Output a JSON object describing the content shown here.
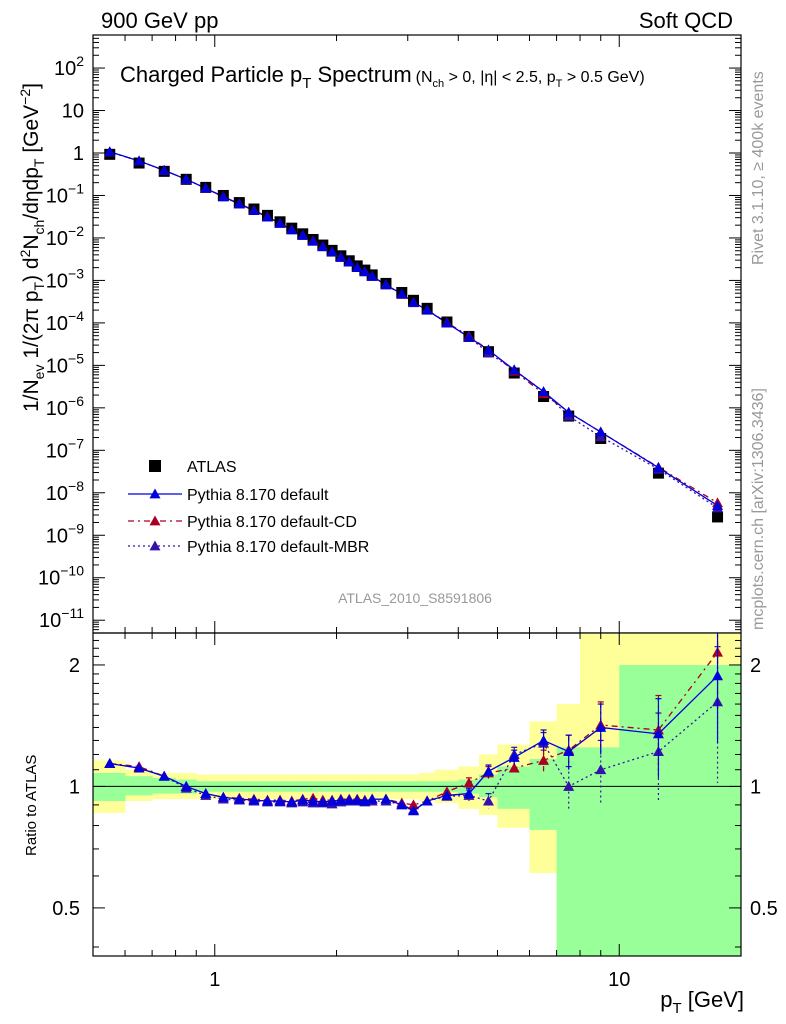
{
  "header": {
    "left": "900 GeV pp",
    "right": "Soft QCD"
  },
  "side": {
    "top": "Rivet 3.1.10, ≥ 400k events",
    "bottom": "mcplots.cern.ch [arXiv:1306.3436]"
  },
  "main_panel": {
    "title": "Charged Particle p",
    "title_sub": "T",
    "title2": " Spectrum",
    "cuts": "(N",
    "cuts_sub": "ch",
    "cuts2": " > 0, |η| < 2.5, p",
    "cuts_sub2": "T",
    "cuts3": " > 0.5 GeV)",
    "ylabel_parts": [
      "1/N",
      "ev",
      "  1/(2π p",
      "T",
      ")  d",
      "2",
      "N",
      "ch",
      "/dηdp",
      "T",
      " [GeV",
      "−2",
      "]"
    ],
    "analysis": "ATLAS_2010_S8591806"
  },
  "ratio_panel": {
    "ylabel": "Ratio to ATLAS"
  },
  "xlabel": "p",
  "xlabel_sub": "T",
  "xlabel_unit": " [GeV]",
  "colors": {
    "data": "#000000",
    "default": "#0000dd",
    "cd": "#aa0022",
    "mbr": "#3311aa",
    "band_inner": "#99ff99",
    "band_outer": "#ffff99"
  },
  "chart_data": [
    {
      "type": "scatter",
      "title": "Charged Particle pT Spectrum (Nch > 0, |η| < 2.5, pT > 0.5 GeV)",
      "xscale": "log",
      "yscale": "log",
      "xlim": [
        0.5,
        20
      ],
      "ylim": [
        5e-12,
        600
      ],
      "x_ticks": [
        "1",
        "10"
      ],
      "y_ticks": [
        "10^-11",
        "10^-10",
        "10^-9",
        "10^-8",
        "10^-7",
        "10^-6",
        "10^-5",
        "10^-4",
        "10^-3",
        "10^-2",
        "10^-1",
        "1",
        "10",
        "10^2"
      ],
      "legend_position": "bottom-left",
      "x": [
        0.55,
        0.65,
        0.75,
        0.85,
        0.95,
        1.05,
        1.15,
        1.25,
        1.35,
        1.45,
        1.55,
        1.65,
        1.75,
        1.85,
        1.95,
        2.05,
        2.15,
        2.25,
        2.35,
        2.45,
        2.65,
        2.9,
        3.1,
        3.35,
        3.75,
        4.25,
        4.75,
        5.5,
        6.5,
        7.5,
        9.0,
        12.5,
        17.5
      ],
      "series": [
        {
          "name": "ATLAS",
          "marker": "square",
          "values": [
            0.93,
            0.58,
            0.37,
            0.24,
            0.155,
            0.1,
            0.068,
            0.048,
            0.034,
            0.024,
            0.017,
            0.0125,
            0.0092,
            0.0068,
            0.0051,
            0.0038,
            0.0029,
            0.0022,
            0.00175,
            0.00135,
            0.00085,
            0.00052,
            0.00034,
            0.00022,
            0.000105,
            4.8e-05,
            2.1e-05,
            6.6e-06,
            1.85e-06,
            6.4e-07,
            1.9e-07,
            2.9e-08,
            2.7e-09
          ]
        },
        {
          "name": "Pythia 8.170 default",
          "marker": "triangle",
          "values": [
            1.07,
            0.65,
            0.39,
            0.24,
            0.148,
            0.093,
            0.063,
            0.044,
            0.031,
            0.022,
            0.0155,
            0.0115,
            0.0084,
            0.0062,
            0.0047,
            0.0035,
            0.0027,
            0.002,
            0.0016,
            0.00125,
            0.00079,
            0.00048,
            0.000305,
            0.0002,
            9.9e-05,
            4.6e-05,
            2.3e-05,
            7.8e-06,
            2.4e-06,
            7.8e-07,
            2.7e-07,
            3.9e-08,
            5e-09
          ]
        },
        {
          "name": "Pythia 8.170 default-CD",
          "marker": "triangle",
          "values": [
            1.06,
            0.65,
            0.39,
            0.24,
            0.149,
            0.094,
            0.064,
            0.045,
            0.0315,
            0.0222,
            0.0157,
            0.0116,
            0.0086,
            0.0063,
            0.0047,
            0.0035,
            0.0027,
            0.002,
            0.0016,
            0.00125,
            0.00079,
            0.00047,
            0.000305,
            0.000201,
            0.000102,
            4.9e-05,
            2.3e-05,
            7.3e-06,
            2.15e-06,
            7.9e-07,
            2.7e-07,
            4e-08,
            5.8e-09
          ]
        },
        {
          "name": "Pythia 8.170 default-MBR",
          "marker": "triangle",
          "values": [
            1.06,
            0.65,
            0.39,
            0.24,
            0.147,
            0.093,
            0.063,
            0.044,
            0.031,
            0.022,
            0.0155,
            0.0114,
            0.0084,
            0.0062,
            0.0046,
            0.0035,
            0.0027,
            0.002,
            0.0016,
            0.00124,
            0.00078,
            0.00047,
            0.000298,
            0.000199,
            9.9e-05,
            4.6e-05,
            1.95e-05,
            7.9e-06,
            2.4e-06,
            6.4e-07,
            2.1e-07,
            3.6e-08,
            4.4e-09
          ]
        }
      ]
    },
    {
      "type": "line",
      "title": "",
      "ylabel": "Ratio to ATLAS",
      "xscale": "log",
      "yscale": "log",
      "xlim": [
        0.5,
        20
      ],
      "ylim": [
        0.38,
        2.4
      ],
      "y_ticks": [
        "0.5",
        "1",
        "2"
      ],
      "x": [
        0.55,
        0.65,
        0.75,
        0.85,
        0.95,
        1.05,
        1.15,
        1.25,
        1.35,
        1.45,
        1.55,
        1.65,
        1.75,
        1.85,
        1.95,
        2.05,
        2.15,
        2.25,
        2.35,
        2.45,
        2.65,
        2.9,
        3.1,
        3.35,
        3.75,
        4.25,
        4.75,
        5.5,
        6.5,
        7.5,
        9.0,
        12.5,
        17.5
      ],
      "x_edges": [
        0.5,
        0.6,
        0.7,
        0.8,
        0.9,
        1.0,
        1.1,
        1.2,
        1.3,
        1.4,
        1.5,
        1.6,
        1.7,
        1.8,
        1.9,
        2.0,
        2.1,
        2.2,
        2.3,
        2.4,
        2.5,
        2.8,
        3.0,
        3.2,
        3.5,
        4.0,
        4.5,
        5.0,
        6.0,
        7.0,
        8.0,
        10.0,
        15.0,
        20.0
      ],
      "band_inner": [
        [
          0.92,
          1.08
        ],
        [
          0.95,
          1.06
        ],
        [
          0.96,
          1.05
        ],
        [
          0.96,
          1.04
        ],
        [
          0.97,
          1.03
        ],
        [
          0.97,
          1.03
        ],
        [
          0.97,
          1.03
        ],
        [
          0.97,
          1.03
        ],
        [
          0.97,
          1.03
        ],
        [
          0.97,
          1.03
        ],
        [
          0.97,
          1.03
        ],
        [
          0.97,
          1.03
        ],
        [
          0.97,
          1.03
        ],
        [
          0.97,
          1.03
        ],
        [
          0.97,
          1.03
        ],
        [
          0.97,
          1.03
        ],
        [
          0.97,
          1.03
        ],
        [
          0.97,
          1.03
        ],
        [
          0.97,
          1.03
        ],
        [
          0.97,
          1.03
        ],
        [
          0.97,
          1.03
        ],
        [
          0.97,
          1.03
        ],
        [
          0.97,
          1.03
        ],
        [
          0.97,
          1.03
        ],
        [
          0.97,
          1.03
        ],
        [
          0.96,
          1.04
        ],
        [
          0.94,
          1.07
        ],
        [
          0.88,
          1.12
        ],
        [
          0.78,
          1.17
        ],
        [
          0.3,
          1.25
        ],
        [
          0.3,
          1.25
        ],
        [
          0.3,
          2.0
        ],
        [
          0.3,
          2.0
        ]
      ],
      "band_outer": [
        [
          0.86,
          1.16
        ],
        [
          0.92,
          1.1
        ],
        [
          0.93,
          1.08
        ],
        [
          0.93,
          1.08
        ],
        [
          0.93,
          1.07
        ],
        [
          0.93,
          1.07
        ],
        [
          0.93,
          1.07
        ],
        [
          0.93,
          1.07
        ],
        [
          0.93,
          1.07
        ],
        [
          0.93,
          1.07
        ],
        [
          0.93,
          1.07
        ],
        [
          0.93,
          1.07
        ],
        [
          0.93,
          1.07
        ],
        [
          0.93,
          1.07
        ],
        [
          0.93,
          1.07
        ],
        [
          0.93,
          1.07
        ],
        [
          0.93,
          1.07
        ],
        [
          0.93,
          1.07
        ],
        [
          0.93,
          1.07
        ],
        [
          0.93,
          1.07
        ],
        [
          0.93,
          1.07
        ],
        [
          0.93,
          1.07
        ],
        [
          0.93,
          1.07
        ],
        [
          0.92,
          1.08
        ],
        [
          0.91,
          1.1
        ],
        [
          0.88,
          1.12
        ],
        [
          0.85,
          1.2
        ],
        [
          0.79,
          1.27
        ],
        [
          0.61,
          1.45
        ],
        [
          0.3,
          1.6
        ],
        [
          0.3,
          2.5
        ],
        [
          0.3,
          2.5
        ],
        [
          0.3,
          2.5
        ]
      ],
      "series": [
        {
          "name": "Pythia 8.170 default",
          "values": [
            1.14,
            1.11,
            1.06,
            1.0,
            0.96,
            0.94,
            0.93,
            0.925,
            0.92,
            0.92,
            0.915,
            0.925,
            0.92,
            0.915,
            0.92,
            0.925,
            0.925,
            0.925,
            0.92,
            0.93,
            0.93,
            0.9,
            0.87,
            0.92,
            0.95,
            0.96,
            1.09,
            1.18,
            1.3,
            1.22,
            1.4,
            1.35,
            1.88
          ],
          "err": [
            0,
            0,
            0,
            0,
            0,
            0,
            0,
            0,
            0,
            0,
            0,
            0,
            0,
            0,
            0,
            0,
            0,
            0,
            0,
            0,
            0,
            0,
            0,
            0,
            0,
            0.03,
            0.04,
            0.05,
            0.08,
            0.12,
            0.2,
            0.3,
            0.6
          ]
        },
        {
          "name": "Pythia 8.170 default-CD",
          "values": [
            1.14,
            1.12,
            1.06,
            1.0,
            0.96,
            0.94,
            0.935,
            0.93,
            0.925,
            0.925,
            0.92,
            0.93,
            0.935,
            0.925,
            0.925,
            0.93,
            0.93,
            0.93,
            0.925,
            0.93,
            0.93,
            0.91,
            0.9,
            0.92,
            0.97,
            1.02,
            1.08,
            1.11,
            1.16,
            1.23,
            1.42,
            1.38,
            2.15
          ],
          "err": [
            0,
            0,
            0,
            0,
            0,
            0,
            0,
            0,
            0,
            0,
            0,
            0,
            0,
            0,
            0,
            0,
            0,
            0,
            0,
            0,
            0,
            0,
            0,
            0,
            0,
            0.03,
            0.04,
            0.05,
            0.07,
            0.11,
            0.2,
            0.3,
            0.6
          ]
        },
        {
          "name": "Pythia 8.170 default-MBR",
          "values": [
            1.14,
            1.11,
            1.06,
            0.99,
            0.95,
            0.93,
            0.925,
            0.92,
            0.915,
            0.915,
            0.91,
            0.915,
            0.91,
            0.91,
            0.905,
            0.915,
            0.92,
            0.92,
            0.915,
            0.92,
            0.92,
            0.9,
            0.875,
            0.92,
            0.945,
            0.95,
            0.92,
            1.2,
            1.28,
            1.0,
            1.1,
            1.22,
            1.62
          ],
          "err": [
            0,
            0,
            0,
            0,
            0,
            0,
            0,
            0,
            0,
            0,
            0,
            0,
            0,
            0,
            0,
            0,
            0,
            0,
            0,
            0,
            0,
            0,
            0,
            0,
            0,
            0.03,
            0.04,
            0.05,
            0.08,
            0.12,
            0.2,
            0.3,
            0.6
          ]
        }
      ]
    }
  ]
}
